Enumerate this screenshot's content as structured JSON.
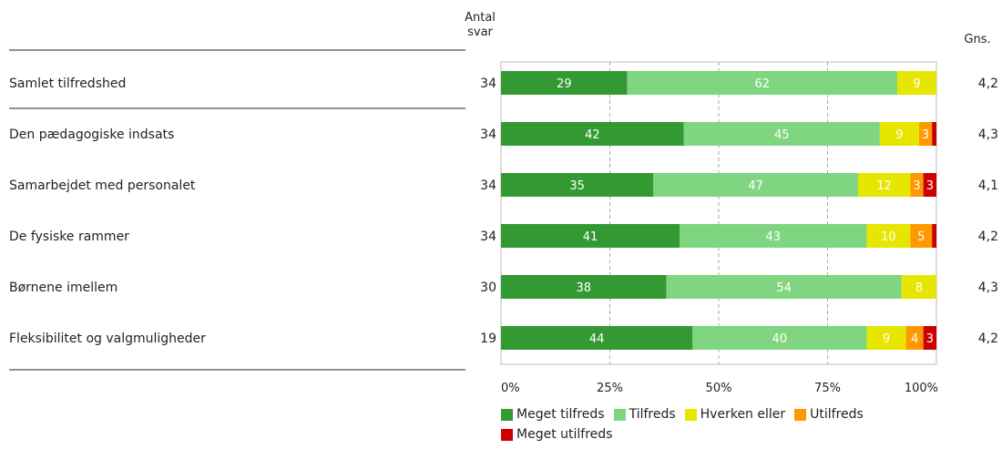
{
  "chart_data": {
    "type": "bar",
    "orientation": "horizontal",
    "stacked": true,
    "header_count": "Antal svar",
    "header_avg": "Gns.",
    "categories": [
      "Samlet tilfredshed",
      "Den pædagogiske indsats",
      "Samarbejdet med personalet",
      "De fysiske rammer",
      "Børnene imellem",
      "Fleksibilitet og valgmuligheder"
    ],
    "counts": [
      34,
      34,
      34,
      34,
      30,
      19
    ],
    "averages": [
      "4,2",
      "4,3",
      "4,1",
      "4,2",
      "4,3",
      "4,2"
    ],
    "series": [
      {
        "name": "Meget tilfreds",
        "color": "#339933",
        "values": [
          29,
          42,
          35,
          41,
          38,
          44
        ],
        "labels": [
          "29",
          "42",
          "35",
          "41",
          "38",
          "44"
        ]
      },
      {
        "name": "Tilfreds",
        "color": "#80d680",
        "values": [
          62,
          45,
          47,
          43,
          54,
          40
        ],
        "labels": [
          "62",
          "45",
          "47",
          "43",
          "54",
          "40"
        ]
      },
      {
        "name": "Hverken eller",
        "color": "#e6e600",
        "values": [
          9,
          9,
          12,
          10,
          8,
          9
        ],
        "labels": [
          "9",
          "9",
          "12",
          "10",
          "8",
          "9"
        ]
      },
      {
        "name": "Utilfreds",
        "color": "#ff9900",
        "values": [
          0,
          3,
          3,
          5,
          0,
          4
        ],
        "labels": [
          "",
          "3",
          "3",
          "5",
          "",
          "4"
        ]
      },
      {
        "name": "Meget utilfreds",
        "color": "#cc0000",
        "values": [
          0,
          1,
          3,
          1,
          0,
          3
        ],
        "labels": [
          "",
          "",
          "3",
          "",
          "",
          "3"
        ]
      }
    ],
    "xlim": [
      0,
      100
    ],
    "xticks": [
      "0%",
      "25%",
      "50%",
      "75%",
      "100%"
    ],
    "grid": true,
    "legend_position": "bottom"
  }
}
